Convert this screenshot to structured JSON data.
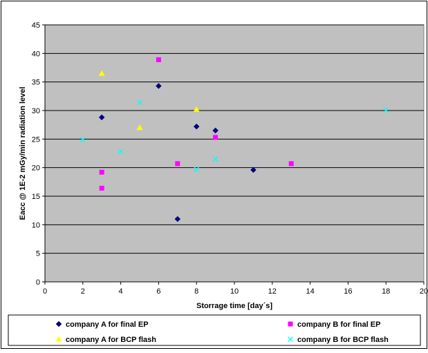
{
  "chart_data": {
    "type": "scatter",
    "title": "",
    "xlabel": "Storrage time [day´s]",
    "ylabel": "Eacc @ 1E-2 mGy/min radiation level",
    "xlim": [
      0,
      20
    ],
    "ylim": [
      0,
      45
    ],
    "x_ticks": [
      "0",
      "2",
      "4",
      "6",
      "8",
      "10",
      "12",
      "14",
      "16",
      "18",
      "20"
    ],
    "y_ticks": [
      "0",
      "5",
      "10",
      "15",
      "20",
      "25",
      "30",
      "35",
      "40",
      "45"
    ],
    "grid": "horizontal",
    "plot_background": "#c0c0c0",
    "legend_position": "bottom",
    "series": [
      {
        "name": "company A for final EP",
        "marker": "diamond",
        "color": "#000080",
        "points": [
          [
            3,
            28.8
          ],
          [
            6,
            34.3
          ],
          [
            7,
            11.0
          ],
          [
            8,
            27.2
          ],
          [
            9,
            26.5
          ],
          [
            11,
            19.6
          ]
        ]
      },
      {
        "name": "company B for final EP",
        "marker": "square",
        "color": "#ff00ff",
        "points": [
          [
            3,
            19.2
          ],
          [
            3,
            16.4
          ],
          [
            6,
            38.9
          ],
          [
            7,
            20.7
          ],
          [
            9,
            25.3
          ],
          [
            13,
            20.7
          ]
        ]
      },
      {
        "name": "company A for BCP flash",
        "marker": "triangle",
        "color": "#ffff00",
        "points": [
          [
            3,
            36.5
          ],
          [
            5,
            27.0
          ],
          [
            8,
            30.2
          ]
        ]
      },
      {
        "name": "company B for BCP flash",
        "marker": "x",
        "color": "#00ffff",
        "points": [
          [
            2,
            24.9
          ],
          [
            4,
            22.8
          ],
          [
            5,
            31.4
          ],
          [
            8,
            19.7
          ],
          [
            9,
            21.5
          ],
          [
            18,
            30.1
          ]
        ]
      }
    ]
  }
}
